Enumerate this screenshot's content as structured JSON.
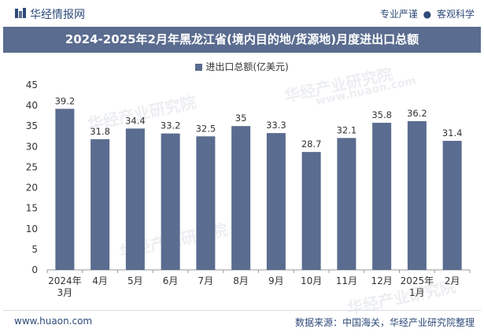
{
  "header": {
    "brand": "华经情报网",
    "tagline_left": "专业严谨",
    "tagline_sep": "●",
    "tagline_right": "客观科学"
  },
  "footer": {
    "website": "www.huaon.com",
    "source": "数据来源：中国海关，华经产业研究院整理"
  },
  "watermarks": [
    "华经产业研究院",
    "华经产业研究院",
    "华经产业研究院",
    "华经产业研究院",
    "www.huaon.com"
  ],
  "colors": {
    "bar": "#5a6c8f",
    "title_bg": "#5a6c8f",
    "brand": "#2e4a7a"
  },
  "chart_data": {
    "type": "bar",
    "title": "2024-2025年2月年黑龙江省(境内目的地/货源地)月度进出口总额",
    "legend": [
      "进出口总额(亿美元)"
    ],
    "categories": [
      "2024年3月",
      "4月",
      "5月",
      "6月",
      "7月",
      "8月",
      "9月",
      "10月",
      "11月",
      "12月",
      "2025年1月",
      "2月"
    ],
    "category_lines": [
      [
        "2024年",
        "3月"
      ],
      [
        "4月"
      ],
      [
        "5月"
      ],
      [
        "6月"
      ],
      [
        "7月"
      ],
      [
        "8月"
      ],
      [
        "9月"
      ],
      [
        "10月"
      ],
      [
        "11月"
      ],
      [
        "12月"
      ],
      [
        "2025年",
        "1月"
      ],
      [
        "2月"
      ]
    ],
    "series": [
      {
        "name": "进出口总额(亿美元)",
        "values": [
          39.2,
          31.8,
          34.4,
          33.2,
          32.5,
          35,
          33.3,
          28.7,
          32.1,
          35.8,
          36.2,
          31.4
        ]
      }
    ],
    "value_labels": [
      "39.2",
      "31.8",
      "34.4",
      "33.2",
      "32.5",
      "35",
      "33.3",
      "28.7",
      "32.1",
      "35.8",
      "36.2",
      "31.4"
    ],
    "yticks": [
      0,
      5,
      10,
      15,
      20,
      25,
      30,
      35,
      40,
      45
    ],
    "ylim": [
      0,
      45
    ],
    "xlabel": "",
    "ylabel": ""
  }
}
